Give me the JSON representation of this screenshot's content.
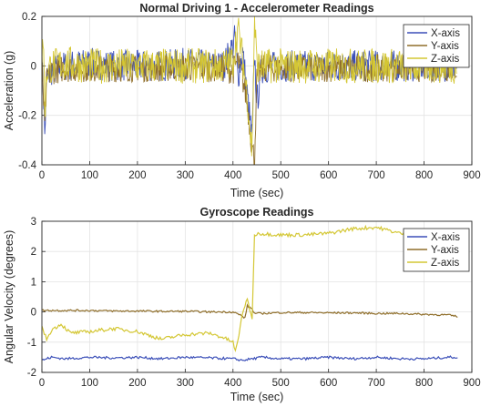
{
  "chart_data": [
    {
      "type": "line",
      "title": "Normal Driving 1 - Accelerometer Readings",
      "xlabel": "Time (sec)",
      "ylabel": "Acceleration (g)",
      "xlim": [
        0,
        900
      ],
      "ylim": [
        -0.4,
        0.2
      ],
      "xticks": [
        "0",
        "100",
        "200",
        "300",
        "400",
        "500",
        "600",
        "700",
        "800",
        "900"
      ],
      "yticks": [
        "0.2",
        "0",
        "-0.2",
        "-0.4"
      ],
      "grid": true,
      "legend": "top-right",
      "series": [
        {
          "name": "X-axis",
          "color": "#3b4fb8",
          "x": [
            0,
            3,
            6,
            10,
            20,
            50,
            100,
            150,
            200,
            250,
            300,
            350,
            380,
            400,
            405,
            410,
            420,
            430,
            440,
            445,
            450,
            460,
            500,
            550,
            600,
            650,
            700,
            750,
            800,
            850,
            870
          ],
          "y": [
            0.0,
            -0.1,
            -0.28,
            -0.05,
            -0.02,
            0.0,
            0.01,
            0.0,
            0.0,
            0.0,
            0.01,
            0.0,
            0.0,
            0.08,
            0.12,
            -0.05,
            0.06,
            -0.12,
            -0.3,
            0.05,
            -0.15,
            -0.01,
            0.0,
            0.0,
            0.0,
            0.0,
            0.0,
            0.0,
            0.0,
            0.0,
            0.0
          ]
        },
        {
          "name": "Y-axis",
          "color": "#8f6e2a",
          "x": [
            0,
            3,
            6,
            10,
            20,
            50,
            100,
            150,
            200,
            250,
            300,
            350,
            380,
            400,
            410,
            420,
            430,
            440,
            445,
            450,
            460,
            500,
            550,
            600,
            650,
            700,
            750,
            800,
            850,
            870
          ],
          "y": [
            0.0,
            -0.12,
            -0.25,
            -0.06,
            -0.02,
            -0.01,
            -0.01,
            -0.01,
            -0.01,
            -0.01,
            -0.01,
            -0.01,
            -0.01,
            -0.02,
            0.02,
            -0.05,
            -0.15,
            -0.33,
            -0.38,
            -0.05,
            -0.01,
            -0.01,
            -0.01,
            -0.01,
            -0.01,
            -0.01,
            -0.01,
            -0.01,
            -0.01,
            -0.01
          ]
        },
        {
          "name": "Z-axis",
          "color": "#d4c734",
          "x": [
            0,
            3,
            6,
            10,
            20,
            50,
            100,
            150,
            200,
            250,
            300,
            350,
            380,
            400,
            410,
            420,
            430,
            440,
            445,
            450,
            460,
            500,
            550,
            600,
            650,
            700,
            750,
            800,
            850,
            870
          ],
          "y": [
            0.0,
            0.15,
            -0.2,
            -0.02,
            0.0,
            0.01,
            0.0,
            0.0,
            0.0,
            0.0,
            0.0,
            0.0,
            0.0,
            0.02,
            0.15,
            0.03,
            -0.12,
            -0.35,
            0.2,
            0.0,
            0.0,
            0.0,
            0.0,
            0.0,
            0.0,
            0.0,
            0.0,
            0.0,
            0.0,
            0.0
          ]
        }
      ]
    },
    {
      "type": "line",
      "title": "Gyroscope Readings",
      "xlabel": "Time (sec)",
      "ylabel": "Angular Velocity (degrees)",
      "xlim": [
        0,
        900
      ],
      "ylim": [
        -2,
        3
      ],
      "xticks": [
        "0",
        "100",
        "200",
        "300",
        "400",
        "500",
        "600",
        "700",
        "800",
        "900"
      ],
      "yticks": [
        "3",
        "2",
        "1",
        "0",
        "-1",
        "-2"
      ],
      "grid": true,
      "legend": "top-right",
      "series": [
        {
          "name": "X-axis",
          "color": "#3b4fb8",
          "x": [
            0,
            20,
            50,
            100,
            150,
            200,
            250,
            300,
            350,
            400,
            420,
            440,
            460,
            500,
            550,
            600,
            650,
            700,
            750,
            800,
            850,
            870
          ],
          "y": [
            -1.6,
            -1.5,
            -1.55,
            -1.5,
            -1.52,
            -1.5,
            -1.55,
            -1.5,
            -1.52,
            -1.55,
            -1.6,
            -1.55,
            -1.5,
            -1.55,
            -1.55,
            -1.5,
            -1.55,
            -1.5,
            -1.55,
            -1.55,
            -1.5,
            -1.5
          ]
        },
        {
          "name": "Y-axis",
          "color": "#8f6e2a",
          "x": [
            0,
            20,
            50,
            100,
            150,
            200,
            250,
            300,
            350,
            400,
            415,
            425,
            430,
            440,
            445,
            460,
            500,
            550,
            600,
            650,
            700,
            750,
            800,
            850,
            870
          ],
          "y": [
            0.05,
            0.05,
            0.05,
            0.05,
            0.03,
            0.03,
            0.02,
            0.02,
            0.0,
            0.0,
            -0.1,
            -0.2,
            0.2,
            0.1,
            -0.05,
            -0.05,
            -0.02,
            -0.02,
            -0.03,
            -0.03,
            -0.05,
            -0.05,
            -0.08,
            -0.1,
            -0.15
          ]
        },
        {
          "name": "Z-axis",
          "color": "#d4c734",
          "x": [
            0,
            10,
            20,
            40,
            60,
            100,
            150,
            200,
            250,
            300,
            350,
            380,
            400,
            405,
            410,
            420,
            430,
            440,
            445,
            450,
            500,
            550,
            600,
            650,
            700,
            750,
            800,
            850,
            870
          ],
          "y": [
            -0.5,
            -0.9,
            -0.6,
            -0.4,
            -0.7,
            -0.65,
            -0.55,
            -0.65,
            -0.9,
            -0.75,
            -0.7,
            -0.85,
            -1.0,
            -1.3,
            -1.0,
            0.0,
            0.4,
            -0.2,
            2.5,
            2.6,
            2.55,
            2.55,
            2.6,
            2.75,
            2.8,
            2.6,
            2.5,
            2.55,
            2.55
          ]
        }
      ]
    }
  ]
}
